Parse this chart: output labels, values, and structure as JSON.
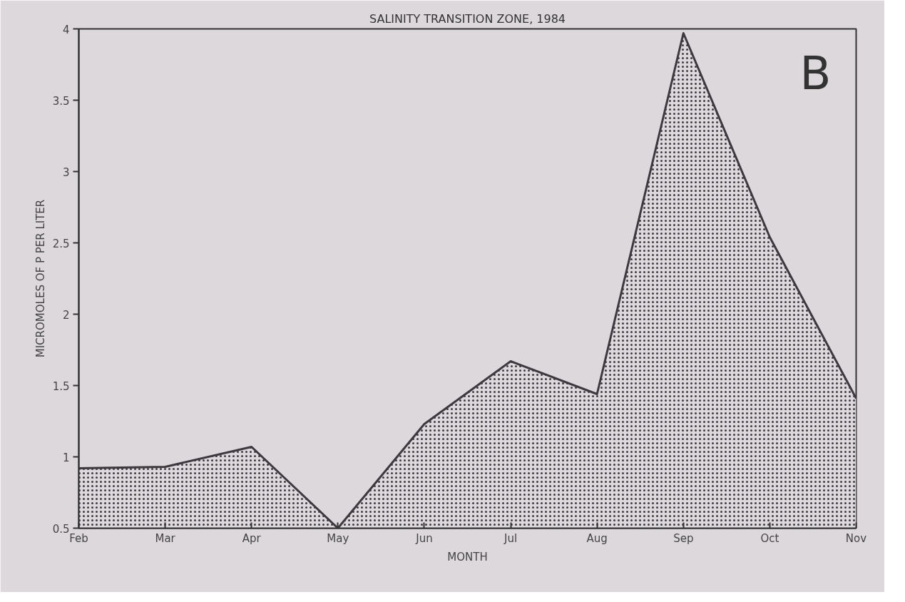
{
  "chart_data": {
    "type": "area",
    "title": "SALINITY TRANSITION ZONE, 1984",
    "xlabel": "MONTH",
    "ylabel": "MICROMOLES OF P PER LITER",
    "categories": [
      "Feb",
      "Mar",
      "Apr",
      "May",
      "Jun",
      "Jul",
      "Aug",
      "Sep",
      "Oct",
      "Nov"
    ],
    "series": [
      {
        "color": "#3c3a3e",
        "values": [
          0.92,
          0.93,
          1.07,
          0.5,
          1.23,
          1.67,
          1.44,
          3.97,
          2.54,
          1.41
        ]
      }
    ],
    "ylim": [
      0.5,
      4
    ],
    "yticks": [
      0.5,
      1,
      1.5,
      2,
      2.5,
      3,
      3.5,
      4
    ],
    "grid": false,
    "annotations": [
      "B"
    ]
  }
}
